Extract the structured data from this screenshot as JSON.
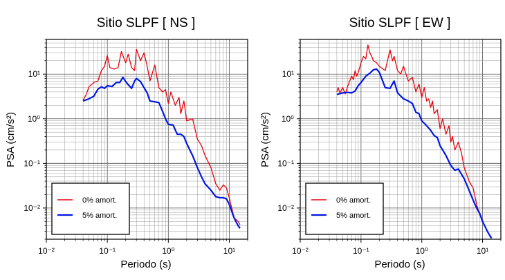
{
  "chart_data": [
    {
      "type": "line",
      "title": "Sitio SLPF [ NS ]",
      "xlabel": "Periodo (s)",
      "ylabel": "PSA (cm/s²)",
      "xscale": "log",
      "yscale": "log",
      "xlim": [
        0.01,
        20
      ],
      "ylim": [
        0.002,
        60
      ],
      "grid": true,
      "legend_position": "bottom-left",
      "x_ticks": [
        "10⁻²",
        "10⁻¹",
        "10⁰",
        "10¹"
      ],
      "y_ticks": [
        "10⁻²",
        "10⁻¹",
        "10⁰",
        "10¹"
      ],
      "series": [
        {
          "name": "0% amort.",
          "color": "#e8000b",
          "points": [
            [
              0.04,
              2.6
            ],
            [
              0.045,
              3.5
            ],
            [
              0.05,
              5.2
            ],
            [
              0.06,
              6.5
            ],
            [
              0.07,
              7.0
            ],
            [
              0.08,
              12
            ],
            [
              0.09,
              15
            ],
            [
              0.1,
              26
            ],
            [
              0.11,
              14
            ],
            [
              0.13,
              13
            ],
            [
              0.15,
              14
            ],
            [
              0.17,
              32
            ],
            [
              0.2,
              18
            ],
            [
              0.22,
              28
            ],
            [
              0.25,
              14
            ],
            [
              0.28,
              12
            ],
            [
              0.3,
              36
            ],
            [
              0.35,
              20
            ],
            [
              0.4,
              30
            ],
            [
              0.45,
              15
            ],
            [
              0.5,
              7
            ],
            [
              0.6,
              16
            ],
            [
              0.7,
              5
            ],
            [
              0.8,
              4
            ],
            [
              0.9,
              4.5
            ],
            [
              1.0,
              2.2
            ],
            [
              1.1,
              4.0
            ],
            [
              1.3,
              2.0
            ],
            [
              1.5,
              3.0
            ],
            [
              1.6,
              1.3
            ],
            [
              1.8,
              2.5
            ],
            [
              2.0,
              0.9
            ],
            [
              2.5,
              1.0
            ],
            [
              3.0,
              0.35
            ],
            [
              3.5,
              0.25
            ],
            [
              4.0,
              0.15
            ],
            [
              5.0,
              0.08
            ],
            [
              6.0,
              0.035
            ],
            [
              7.0,
              0.025
            ],
            [
              8.0,
              0.033
            ],
            [
              9.0,
              0.028
            ],
            [
              10.0,
              0.017
            ],
            [
              12.0,
              0.006
            ],
            [
              14.0,
              0.005
            ],
            [
              15.0,
              0.0042
            ]
          ]
        },
        {
          "name": "5% amort.",
          "color": "#0017e6",
          "points": [
            [
              0.04,
              2.5
            ],
            [
              0.05,
              2.8
            ],
            [
              0.06,
              3.2
            ],
            [
              0.07,
              4.6
            ],
            [
              0.08,
              5.2
            ],
            [
              0.09,
              4.8
            ],
            [
              0.1,
              5.5
            ],
            [
              0.12,
              5.3
            ],
            [
              0.14,
              6.5
            ],
            [
              0.16,
              6.5
            ],
            [
              0.18,
              8.5
            ],
            [
              0.2,
              6.8
            ],
            [
              0.22,
              5.8
            ],
            [
              0.25,
              4.8
            ],
            [
              0.28,
              7.0
            ],
            [
              0.3,
              8.0
            ],
            [
              0.35,
              6.8
            ],
            [
              0.4,
              5.0
            ],
            [
              0.45,
              3.8
            ],
            [
              0.5,
              2.5
            ],
            [
              0.6,
              2.4
            ],
            [
              0.7,
              2.3
            ],
            [
              0.8,
              1.5
            ],
            [
              0.9,
              1.0
            ],
            [
              1.0,
              0.75
            ],
            [
              1.2,
              0.72
            ],
            [
              1.4,
              0.45
            ],
            [
              1.6,
              0.45
            ],
            [
              1.8,
              0.4
            ],
            [
              2.0,
              0.28
            ],
            [
              2.5,
              0.15
            ],
            [
              3.0,
              0.08
            ],
            [
              3.5,
              0.05
            ],
            [
              4.0,
              0.035
            ],
            [
              5.0,
              0.025
            ],
            [
              6.0,
              0.018
            ],
            [
              7.0,
              0.017
            ],
            [
              8.0,
              0.017
            ],
            [
              9.0,
              0.016
            ],
            [
              10.0,
              0.012
            ],
            [
              12.0,
              0.006
            ],
            [
              14.0,
              0.004
            ],
            [
              15.0,
              0.0035
            ]
          ]
        }
      ]
    },
    {
      "type": "line",
      "title": "Sitio SLPF [ EW ]",
      "xlabel": "Periodo (s)",
      "ylabel": "PSA (cm/s²)",
      "xscale": "log",
      "yscale": "log",
      "xlim": [
        0.01,
        20
      ],
      "ylim": [
        0.002,
        60
      ],
      "grid": true,
      "legend_position": "bottom-left",
      "x_ticks": [
        "10⁻²",
        "10⁻¹",
        "10⁰",
        "10¹"
      ],
      "y_ticks": [
        "10⁻²",
        "10⁻¹",
        "10⁰",
        "10¹"
      ],
      "series": [
        {
          "name": "0% amort.",
          "color": "#e8000b",
          "points": [
            [
              0.04,
              4.0
            ],
            [
              0.042,
              5.0
            ],
            [
              0.045,
              3.8
            ],
            [
              0.05,
              5.0
            ],
            [
              0.055,
              3.6
            ],
            [
              0.06,
              5.2
            ],
            [
              0.065,
              7.0
            ],
            [
              0.07,
              9.0
            ],
            [
              0.075,
              7.5
            ],
            [
              0.08,
              12
            ],
            [
              0.085,
              9.0
            ],
            [
              0.09,
              11
            ],
            [
              0.095,
              14
            ],
            [
              0.1,
              18
            ],
            [
              0.11,
              25
            ],
            [
              0.12,
              22
            ],
            [
              0.13,
              45
            ],
            [
              0.14,
              30
            ],
            [
              0.15,
              25
            ],
            [
              0.16,
              20
            ],
            [
              0.18,
              18
            ],
            [
              0.2,
              15
            ],
            [
              0.25,
              12
            ],
            [
              0.3,
              35
            ],
            [
              0.33,
              20
            ],
            [
              0.35,
              25
            ],
            [
              0.4,
              12
            ],
            [
              0.45,
              10
            ],
            [
              0.5,
              15
            ],
            [
              0.6,
              7.0
            ],
            [
              0.7,
              8.5
            ],
            [
              0.8,
              4.0
            ],
            [
              0.9,
              6.0
            ],
            [
              1.0,
              3.0
            ],
            [
              1.1,
              5.0
            ],
            [
              1.2,
              2.5
            ],
            [
              1.3,
              2.8
            ],
            [
              1.4,
              1.8
            ],
            [
              1.5,
              2.5
            ],
            [
              1.6,
              1.3
            ],
            [
              1.8,
              1.6
            ],
            [
              2.0,
              0.6
            ],
            [
              2.2,
              1.0
            ],
            [
              2.5,
              0.45
            ],
            [
              2.8,
              0.7
            ],
            [
              3.0,
              0.3
            ],
            [
              3.2,
              0.4
            ],
            [
              3.5,
              0.2
            ],
            [
              4.0,
              0.3
            ],
            [
              4.5,
              0.17
            ],
            [
              5.0,
              0.08
            ],
            [
              6.0,
              0.04
            ],
            [
              7.0,
              0.028
            ],
            [
              8.0,
              0.012
            ],
            [
              9.0,
              0.007
            ],
            [
              10.0,
              0.005
            ],
            [
              12.0,
              0.003
            ],
            [
              14.0,
              0.0022
            ]
          ]
        },
        {
          "name": "5% amort.",
          "color": "#0017e6",
          "points": [
            [
              0.04,
              3.5
            ],
            [
              0.05,
              3.8
            ],
            [
              0.06,
              3.9
            ],
            [
              0.07,
              3.8
            ],
            [
              0.08,
              4.2
            ],
            [
              0.09,
              5.5
            ],
            [
              0.1,
              6.5
            ],
            [
              0.12,
              9.0
            ],
            [
              0.14,
              10.5
            ],
            [
              0.16,
              12.5
            ],
            [
              0.18,
              13
            ],
            [
              0.2,
              11
            ],
            [
              0.25,
              5.0
            ],
            [
              0.3,
              4.8
            ],
            [
              0.35,
              7.0
            ],
            [
              0.4,
              3.8
            ],
            [
              0.5,
              2.8
            ],
            [
              0.6,
              2.5
            ],
            [
              0.7,
              2.2
            ],
            [
              0.8,
              1.4
            ],
            [
              0.9,
              1.3
            ],
            [
              1.0,
              0.9
            ],
            [
              1.2,
              0.7
            ],
            [
              1.4,
              0.55
            ],
            [
              1.6,
              0.42
            ],
            [
              1.8,
              0.38
            ],
            [
              2.0,
              0.25
            ],
            [
              2.5,
              0.15
            ],
            [
              3.0,
              0.09
            ],
            [
              3.5,
              0.07
            ],
            [
              4.0,
              0.075
            ],
            [
              5.0,
              0.045
            ],
            [
              6.0,
              0.025
            ],
            [
              7.0,
              0.015
            ],
            [
              8.0,
              0.01
            ],
            [
              9.0,
              0.0075
            ],
            [
              10.0,
              0.005
            ],
            [
              12.0,
              0.003
            ],
            [
              14.0,
              0.0021
            ]
          ]
        }
      ]
    }
  ]
}
